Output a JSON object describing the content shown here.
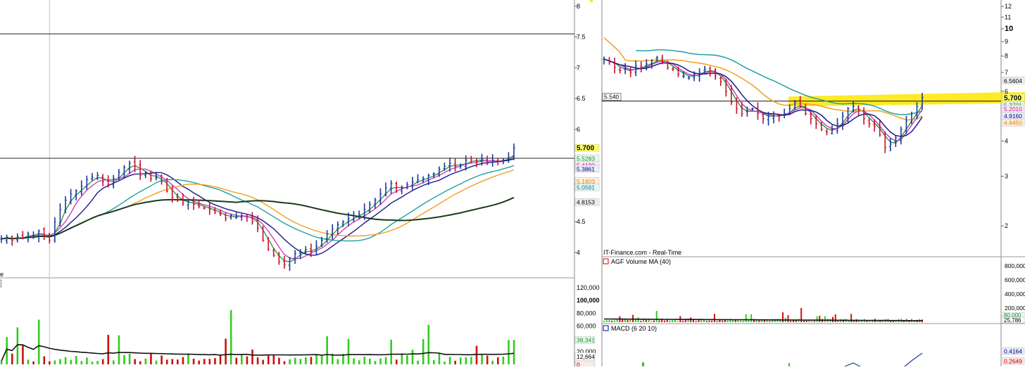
{
  "left_panel": {
    "price_axis": {
      "min": 3.6,
      "max": 8.1,
      "ticks": [
        {
          "v": 8,
          "label": "8"
        },
        {
          "v": 7.5,
          "label": "7.5"
        },
        {
          "v": 7,
          "label": "7"
        },
        {
          "v": 6.5,
          "label": "6.5"
        },
        {
          "v": 6,
          "label": "6"
        },
        {
          "v": 4.5,
          "label": "4.5"
        },
        {
          "v": 4,
          "label": "4"
        }
      ]
    },
    "hlines": [
      7.55,
      5.53
    ],
    "vline_index": 9,
    "labels": [
      {
        "v": 5.7,
        "text": "5.700",
        "bg": "#ffff66",
        "color": "#000000",
        "bold": true
      },
      {
        "v": 5.53,
        "text": "5.5283",
        "bg": "#e8f8e8",
        "color": "#1a8a3a"
      },
      {
        "v": 5.42,
        "text": "5.4190",
        "bg": "#fbe8f3",
        "color": "#c020a0"
      },
      {
        "v": 5.36,
        "text": "5.3861",
        "bg": "#e8ecf8",
        "color": "#000080"
      },
      {
        "v": 5.16,
        "text": "5.1603",
        "bg": "#fdf0e0",
        "color": "#e08000"
      },
      {
        "v": 5.06,
        "text": "5.0591",
        "bg": "#e6f5f5",
        "color": "#008080"
      },
      {
        "v": 4.82,
        "text": "4.8153",
        "bg": "#eeeeee",
        "color": "#000000"
      }
    ],
    "volume_axis": {
      "max": 130000,
      "ticks": [
        {
          "v": 120000,
          "label": "120,000"
        },
        {
          "v": 100000,
          "label": "100,000",
          "bold": true
        },
        {
          "v": 80000,
          "label": "80,000"
        },
        {
          "v": 60000,
          "label": "60,000"
        },
        {
          "v": 20000,
          "label": "20,000"
        }
      ],
      "labels": [
        {
          "v": 38341,
          "text": "38,341",
          "bg": "#e8f8e8",
          "color": "#1a8a3a"
        },
        {
          "v": 12664,
          "text": "12,664",
          "bg": "#ffffff",
          "color": "#000000"
        },
        {
          "v": 0,
          "text": "0",
          "bg": "#fbe8e8",
          "color": "#c00000"
        }
      ]
    },
    "truncated_label": "e"
  },
  "right_panel": {
    "price_axis": {
      "min": 1.6,
      "max": 12.5,
      "ticks": [
        {
          "v": 12,
          "label": "12"
        },
        {
          "v": 11,
          "label": "11"
        },
        {
          "v": 10,
          "label": "10",
          "bold": true
        },
        {
          "v": 9,
          "label": "9"
        },
        {
          "v": 8,
          "label": "8"
        },
        {
          "v": 7,
          "label": "7"
        },
        {
          "v": 6,
          "label": "6"
        },
        {
          "v": 4,
          "label": "4"
        },
        {
          "v": 3,
          "label": "3"
        },
        {
          "v": 2,
          "label": "2"
        }
      ]
    },
    "hline": {
      "v": 5.54,
      "label": "5.540"
    },
    "labels": [
      {
        "v": 6.56,
        "text": "6.5604",
        "bg": "#eeeeee",
        "color": "#000000"
      },
      {
        "v": 5.7,
        "text": "5.700",
        "bg": "#ffff66",
        "color": "#000000",
        "bold": true
      },
      {
        "v": 5.37,
        "text": "5.3701",
        "bg": "#e8f8e8",
        "color": "#1a8a3a"
      },
      {
        "v": 5.2,
        "text": "5.2010",
        "bg": "#fbe8f3",
        "color": "#c020a0"
      },
      {
        "v": 4.92,
        "text": "4.9160",
        "bg": "#e8ecf8",
        "color": "#000080"
      },
      {
        "v": 4.65,
        "text": "4.6450",
        "bg": "#fdf0e0",
        "color": "#e08000"
      }
    ],
    "source_caption": "IT-Finance.com - Real-Time",
    "volume_title": "AGF Volume  MA (40)",
    "volume_axis": {
      "max": 900000,
      "ticks": [
        {
          "v": 800000,
          "label": "800,000"
        },
        {
          "v": 600000,
          "label": "600,000"
        },
        {
          "v": 400000,
          "label": "400,000"
        },
        {
          "v": 200000,
          "label": "200,000"
        }
      ],
      "labels": [
        {
          "v": 80000,
          "text": "80,000",
          "bg": "#e8f8e8",
          "color": "#1a8a3a"
        },
        {
          "v": 25786,
          "text": "25,786",
          "bg": "#ffffff",
          "color": "#000000"
        }
      ]
    },
    "macd_title": "MACD (6 20 10)",
    "macd_labels": [
      {
        "text": "0.4164",
        "bg": "#e8ecf8",
        "color": "#000080"
      },
      {
        "text": "0.2649",
        "bg": "#fbe8e8",
        "color": "#c00000"
      }
    ]
  },
  "colors": {
    "up": "#1a3a9a",
    "down": "#c8102e",
    "ma_green": "#2ea043",
    "ma_magenta": "#d040c0",
    "ma_navy": "#1a1a8a",
    "ma_teal": "#20a0a0",
    "ma_orange": "#f0a020",
    "ma_black": "#1a3a1a",
    "vol_up": "#33cc22",
    "vol_down": "#cc1111",
    "highlight": "#ffe600"
  },
  "chart_data": [
    {
      "type": "line",
      "title": "",
      "series": [
        {
          "values": [
            4.22,
            4.25,
            4.2,
            4.26,
            4.24,
            4.3,
            4.28,
            4.35,
            4.26,
            4.2,
            4.5,
            4.7,
            4.85,
            4.95,
            5.0,
            5.08,
            5.18,
            5.22,
            5.25,
            5.15,
            5.1,
            5.2,
            5.3,
            5.38,
            5.45,
            5.4,
            5.25,
            5.3,
            5.2,
            5.22,
            5.15,
            5.0,
            4.9,
            4.85,
            4.8,
            4.82,
            4.78,
            4.75,
            4.72,
            4.7,
            4.65,
            4.62,
            4.55,
            4.6,
            4.58,
            4.6,
            4.58,
            4.5,
            4.4,
            4.2,
            4.05,
            3.95,
            3.85,
            3.8,
            3.9,
            3.98,
            4.0,
            4.05,
            4.02,
            4.1,
            4.2,
            4.3,
            4.38,
            4.45,
            4.5,
            4.55,
            4.6,
            4.62,
            4.7,
            4.78,
            4.85,
            4.95,
            5.05,
            5.12,
            5.0,
            5.05,
            5.1,
            5.15,
            5.18,
            5.2,
            5.25,
            5.28,
            5.35,
            5.4,
            5.45,
            5.4,
            5.42,
            5.5,
            5.5,
            5.48,
            5.52,
            5.45,
            5.5,
            5.48,
            5.5,
            5.55,
            5.7
          ]
        }
      ]
    },
    {
      "type": "line",
      "title": "",
      "series": [
        {
          "values": [
            7.8,
            7.6,
            7.3,
            7.1,
            7.2,
            7.0,
            7.4,
            7.3,
            7.5,
            7.7,
            7.9,
            7.6,
            7.3,
            7.2,
            6.9,
            6.8,
            6.7,
            6.9,
            7.0,
            7.2,
            7.1,
            6.8,
            6.5,
            6.0,
            5.5,
            5.2,
            5.0,
            5.1,
            5.2,
            5.0,
            4.8,
            4.9,
            5.0,
            4.9,
            5.0,
            5.2,
            5.5,
            5.3,
            5.0,
            4.8,
            4.6,
            4.4,
            4.3,
            4.4,
            4.6,
            4.9,
            5.2,
            5.3,
            5.1,
            4.8,
            4.6,
            4.5,
            4.2,
            3.8,
            3.9,
            4.1,
            4.4,
            4.7,
            5.0,
            5.3,
            5.7
          ]
        }
      ]
    }
  ]
}
